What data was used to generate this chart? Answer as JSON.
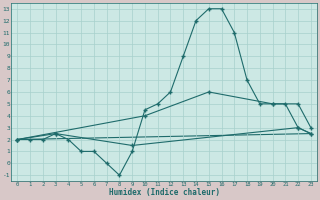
{
  "background_color": "#cce8e4",
  "outer_background": "#d8c8c8",
  "line_color": "#1e6b6b",
  "grid_color": "#b0d4d0",
  "xlabel": "Humidex (Indice chaleur)",
  "xlim": [
    -0.5,
    23.5
  ],
  "ylim": [
    -1.5,
    13.5
  ],
  "xticks": [
    0,
    1,
    2,
    3,
    4,
    5,
    6,
    7,
    8,
    9,
    10,
    11,
    12,
    13,
    14,
    15,
    16,
    17,
    18,
    19,
    20,
    21,
    22,
    23
  ],
  "yticks": [
    -1,
    0,
    1,
    2,
    3,
    4,
    5,
    6,
    7,
    8,
    9,
    10,
    11,
    12,
    13
  ],
  "line1_x": [
    0,
    1,
    2,
    3,
    4,
    5,
    6,
    7,
    8,
    9,
    10,
    11,
    12,
    13,
    14,
    15,
    16,
    17,
    18,
    19,
    20,
    21,
    22,
    23
  ],
  "line1_y": [
    2.0,
    2.0,
    2.0,
    2.5,
    2.0,
    1.0,
    1.0,
    0.0,
    -1.0,
    1.0,
    4.5,
    5.0,
    6.0,
    9.0,
    12.0,
    13.0,
    13.0,
    11.0,
    7.0,
    5.0,
    5.0,
    5.0,
    3.0,
    2.5
  ],
  "line2_x": [
    0,
    3,
    9,
    22,
    23
  ],
  "line2_y": [
    2.0,
    2.5,
    1.5,
    3.0,
    2.5
  ],
  "line3_x": [
    0,
    23
  ],
  "line3_y": [
    2.0,
    2.5
  ],
  "line4_x": [
    0,
    10,
    15,
    20,
    22,
    23
  ],
  "line4_y": [
    2.0,
    4.0,
    6.0,
    5.0,
    5.0,
    3.0
  ]
}
